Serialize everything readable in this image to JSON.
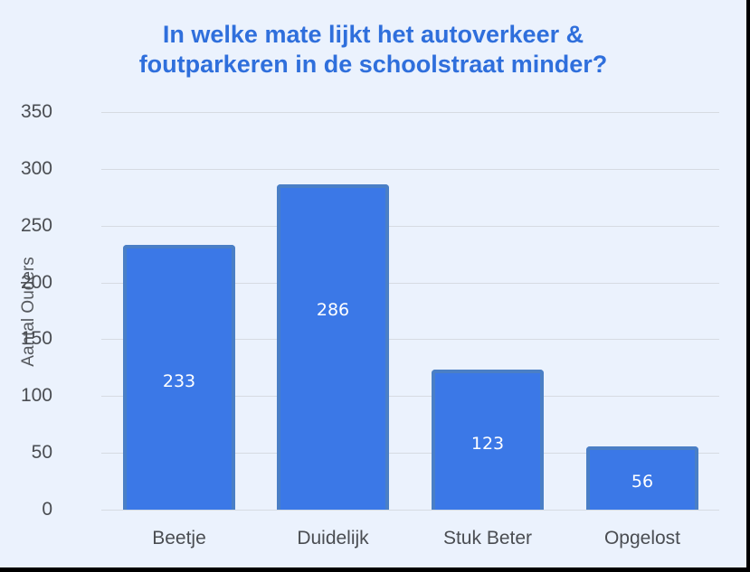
{
  "chart_data": {
    "type": "bar",
    "title": "In welke mate lijkt het autoverkeer & foutparkeren in de schoolstraat minder?",
    "title_lines": [
      "In welke mate lijkt het autoverkeer &",
      "foutparkeren in de schoolstraat minder?"
    ],
    "categories": [
      "Beetje",
      "Duidelijk",
      "Stuk Beter",
      "Opgelost"
    ],
    "values": [
      233,
      286,
      123,
      56
    ],
    "data_labels": [
      "233",
      "286",
      "123",
      "56"
    ],
    "xlabel": "",
    "ylabel": "Aantal Ouders",
    "ylim": [
      0,
      350
    ],
    "yticks": [
      "0",
      "50",
      "100",
      "150",
      "200",
      "250",
      "300",
      "350"
    ],
    "grid": true,
    "legend": "none",
    "colors": {
      "bar": "#3b78e7",
      "bar_border": "#4a7fc6",
      "title": "#2f6fdc",
      "background": "#ebf2fd"
    }
  }
}
